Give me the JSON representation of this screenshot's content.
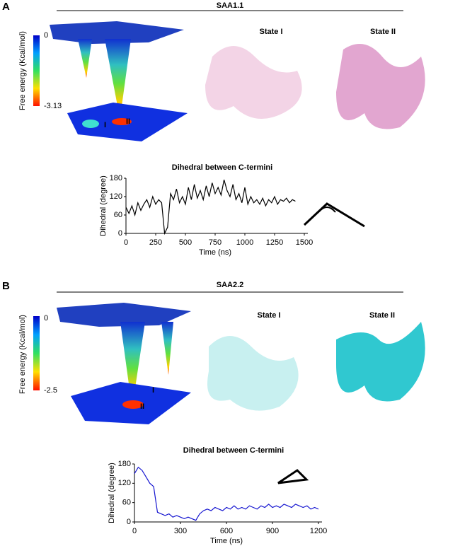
{
  "panels": [
    {
      "label": "A",
      "title": "SAA1.1",
      "colorbar": {
        "label": "Free energy  (Kcal/mol)",
        "range": [
          -3.13,
          0
        ]
      },
      "states": [
        "State I",
        "State II"
      ],
      "minima": [
        "I",
        "II"
      ]
    },
    {
      "label": "B",
      "title": "SAA2.2",
      "colorbar": {
        "label": "Free energy  (Kcal/mol)",
        "range": [
          -2.5,
          0
        ]
      },
      "states": [
        "State I",
        "State II"
      ],
      "minima": [
        "I",
        "II"
      ]
    }
  ],
  "chart_data": [
    {
      "type": "line",
      "title": "Dihedral between C-termini",
      "x_label": "Time (ns)",
      "y_label": "Dihedral (degree)",
      "xlim": [
        0,
        1500
      ],
      "xticks": [
        0,
        250,
        500,
        750,
        1000,
        1250,
        1500
      ],
      "ylim": [
        0,
        180
      ],
      "yticks": [
        0,
        60,
        120,
        180
      ],
      "x": [
        0,
        25,
        50,
        75,
        100,
        125,
        150,
        175,
        200,
        225,
        250,
        275,
        300,
        325,
        350,
        375,
        400,
        425,
        450,
        475,
        500,
        525,
        550,
        575,
        600,
        625,
        650,
        675,
        700,
        725,
        750,
        775,
        800,
        825,
        850,
        875,
        900,
        925,
        950,
        975,
        1000,
        1025,
        1050,
        1075,
        1100,
        1125,
        1150,
        1175,
        1200,
        1225,
        1250,
        1275,
        1300,
        1325,
        1350,
        1375,
        1400,
        1425
      ],
      "series": [
        {
          "color": "#000000",
          "values": [
            85,
            65,
            90,
            60,
            100,
            75,
            95,
            110,
            85,
            120,
            95,
            110,
            100,
            0,
            20,
            130,
            110,
            145,
            100,
            120,
            95,
            150,
            110,
            160,
            115,
            140,
            110,
            155,
            120,
            165,
            130,
            150,
            125,
            175,
            140,
            120,
            160,
            110,
            130,
            100,
            150,
            95,
            120,
            100,
            110,
            95,
            115,
            90,
            110,
            100,
            120,
            95,
            110,
            105,
            115,
            100,
            110,
            105
          ]
        }
      ]
    },
    {
      "type": "line",
      "title": "Dihedral between C-termini",
      "x_label": "Time (ns)",
      "y_label": "Dihedral (degree)",
      "xlim": [
        0,
        1200
      ],
      "xticks": [
        0,
        300,
        600,
        900,
        1200
      ],
      "ylim": [
        0,
        180
      ],
      "yticks": [
        0,
        60,
        120,
        180
      ],
      "x": [
        0,
        25,
        50,
        75,
        100,
        125,
        150,
        175,
        200,
        225,
        250,
        275,
        300,
        325,
        350,
        375,
        400,
        425,
        450,
        475,
        500,
        525,
        550,
        575,
        600,
        625,
        650,
        675,
        700,
        725,
        750,
        775,
        800,
        825,
        850,
        875,
        900,
        925,
        950,
        975,
        1000,
        1025,
        1050,
        1075,
        1100,
        1125,
        1150,
        1175,
        1200
      ],
      "series": [
        {
          "color": "#1515d0",
          "values": [
            150,
            170,
            160,
            140,
            120,
            110,
            30,
            25,
            20,
            25,
            15,
            20,
            15,
            10,
            15,
            10,
            5,
            25,
            35,
            40,
            35,
            45,
            40,
            35,
            45,
            40,
            50,
            40,
            45,
            40,
            50,
            45,
            40,
            50,
            45,
            55,
            45,
            50,
            45,
            55,
            50,
            45,
            55,
            50,
            45,
            50,
            40,
            45,
            40
          ]
        }
      ]
    }
  ]
}
